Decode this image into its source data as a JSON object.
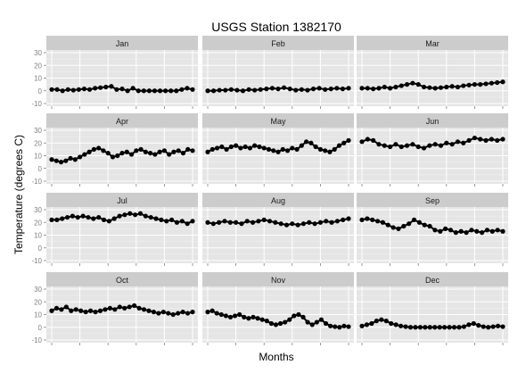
{
  "chart_data": {
    "type": "line",
    "title": "USGS Station 1382170",
    "xlabel": "Months",
    "ylabel": "Temperature (degrees C)",
    "ylim": [
      -10,
      30
    ],
    "y_ticks": [
      "-10",
      "0",
      "10",
      "20",
      "30"
    ],
    "grid": true,
    "facet_layout": "4 rows × 3 columns, shared axes",
    "colors": {
      "panel_background": "#e5e5e5",
      "grid_major": "#ffffff",
      "grid_minor": "#f2f2f2",
      "strip_background": "#cccccc",
      "series": "#000000",
      "axis_text": "#7f7f7f"
    },
    "panels": [
      {
        "month": "Jan",
        "values": [
          1,
          1,
          0,
          1,
          0.5,
          1,
          1.5,
          1,
          2,
          2.5,
          3,
          3.5,
          1,
          1.5,
          0,
          2,
          0,
          0,
          0,
          0,
          0,
          0,
          0,
          0,
          1,
          2,
          1
        ]
      },
      {
        "month": "Feb",
        "values": [
          0,
          0,
          0.5,
          0.5,
          1,
          0.5,
          0,
          1,
          0.5,
          1,
          1.5,
          2,
          1.5,
          2.5,
          1.5,
          0.5,
          1,
          0.5,
          1.5,
          2,
          1,
          1.5,
          2,
          1.5,
          2
        ]
      },
      {
        "month": "Mar",
        "values": [
          2,
          2,
          1.5,
          2,
          3,
          2,
          3,
          4,
          5,
          6,
          5,
          3,
          2.5,
          2,
          2.5,
          3,
          3.5,
          3,
          4,
          4.5,
          5,
          5,
          5.5,
          6,
          6.5,
          7
        ]
      },
      {
        "month": "Apr",
        "values": [
          7,
          6,
          5,
          6,
          8,
          7,
          9,
          11,
          13,
          15,
          16,
          14,
          12,
          9,
          10,
          12,
          13,
          11,
          14,
          15,
          13,
          12,
          11,
          13,
          14,
          11,
          13,
          14,
          12,
          15,
          14
        ]
      },
      {
        "month": "May",
        "values": [
          13,
          15,
          16,
          17,
          15,
          17,
          18,
          16,
          17,
          16,
          18,
          17,
          16,
          15,
          14,
          13,
          15,
          14,
          16,
          15,
          18,
          21,
          20,
          17,
          15,
          14,
          13,
          15,
          18,
          20,
          22
        ]
      },
      {
        "month": "Jun",
        "values": [
          21,
          23,
          22,
          19,
          18,
          17,
          19,
          17,
          18,
          19,
          17,
          16,
          18,
          19,
          18,
          20,
          19,
          21,
          20,
          22,
          24,
          23,
          22,
          23,
          22,
          23
        ]
      },
      {
        "month": "Jul",
        "values": [
          22,
          22,
          23,
          24,
          25,
          24,
          25,
          24,
          23,
          24,
          22,
          21,
          23,
          25,
          26,
          27,
          26,
          27,
          25,
          24,
          23,
          22,
          21,
          22,
          20,
          21,
          19,
          21
        ]
      },
      {
        "month": "Aug",
        "values": [
          20,
          19,
          20,
          21,
          20,
          20,
          19,
          21,
          20,
          21,
          22,
          21,
          20,
          19,
          18,
          19,
          18,
          19,
          20,
          19,
          20,
          21,
          20,
          21,
          22,
          23
        ]
      },
      {
        "month": "Sep",
        "values": [
          22,
          23,
          22,
          21,
          20,
          18,
          16,
          15,
          17,
          19,
          22,
          20,
          18,
          17,
          14,
          13,
          15,
          14,
          12,
          13,
          12,
          14,
          13,
          12,
          14,
          13,
          14,
          13
        ]
      },
      {
        "month": "Oct",
        "values": [
          13,
          15,
          14,
          16,
          13,
          14,
          13,
          12,
          13,
          12,
          13,
          14,
          15,
          14,
          16,
          15,
          16,
          17,
          15,
          14,
          13,
          12,
          11,
          12,
          11,
          10,
          11,
          12,
          11,
          12
        ]
      },
      {
        "month": "Nov",
        "values": [
          12,
          13,
          11,
          10,
          9,
          8,
          9,
          10,
          8,
          7,
          8,
          7,
          6,
          5,
          3,
          2,
          3,
          4,
          6,
          9,
          10,
          8,
          4,
          2,
          4,
          6,
          3,
          1,
          0.5,
          0,
          1,
          0.5
        ]
      },
      {
        "month": "Dec",
        "values": [
          1,
          2,
          3,
          5,
          6,
          5,
          3,
          2,
          1,
          0.5,
          0,
          0,
          0,
          0,
          0,
          0,
          0,
          0,
          0,
          0,
          0,
          0.5,
          2,
          3,
          1.5,
          0.5,
          0,
          0.5,
          1,
          0.5
        ]
      }
    ]
  }
}
